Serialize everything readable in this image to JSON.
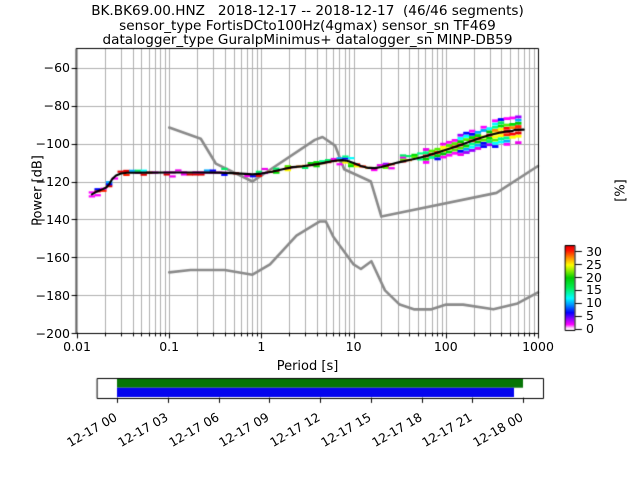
{
  "title": {
    "line1": "BK.BK69.00.HNZ   2018-12-17 -- 2018-12-17  (46/46 segments)",
    "line2": "sensor_type FortisDCto100Hz(4gmax) sensor_sn TF469",
    "line3": "datalogger_type GuralpMinimus+ datalogger_sn MINP-DB59"
  },
  "axes": {
    "xlabel": "Period [s]",
    "ylabel": "Power [dB]",
    "x_tick_labels": [
      "0.01",
      "0.1",
      "1",
      "10",
      "100",
      "1000"
    ],
    "x_tick_values": [
      0.01,
      0.1,
      1,
      10,
      100,
      1000
    ],
    "y_tick_labels": [
      "−60",
      "−80",
      "−100",
      "−120",
      "−140",
      "−160",
      "−180",
      "−200"
    ],
    "y_tick_values": [
      -60,
      -80,
      -100,
      -120,
      -140,
      -160,
      -180,
      -200
    ],
    "grid_color": "#b0b0b0"
  },
  "colorbar": {
    "label": "[%]",
    "tick_labels": [
      "30",
      "25",
      "20",
      "15",
      "10",
      "5",
      "0"
    ],
    "tick_values": [
      30,
      25,
      20,
      15,
      10,
      5,
      0
    ],
    "vmax": 32.4,
    "stops": [
      [
        0.0,
        "#ffffff"
      ],
      [
        0.03,
        "#ffd5ff"
      ],
      [
        0.07,
        "#ff00ff"
      ],
      [
        0.14,
        "#8800ff"
      ],
      [
        0.21,
        "#0000ff"
      ],
      [
        0.3,
        "#0090ff"
      ],
      [
        0.38,
        "#00ffff"
      ],
      [
        0.5,
        "#00ee55"
      ],
      [
        0.62,
        "#00cc00"
      ],
      [
        0.7,
        "#88ee00"
      ],
      [
        0.77,
        "#ffff00"
      ],
      [
        0.86,
        "#ff8800"
      ],
      [
        0.94,
        "#ff1100"
      ],
      [
        0.985,
        "#ee0000"
      ],
      [
        1.0,
        "#7d0000"
      ]
    ]
  },
  "timeline": {
    "tick_labels": [
      "12-17 00",
      "12-17 03",
      "12-17 06",
      "12-17 09",
      "12-17 12",
      "12-17 15",
      "12-17 18",
      "12-17 21",
      "12-18 00"
    ],
    "green_color": "#067506",
    "blue_color": "#0404ee"
  },
  "chart_data": {
    "type": "line",
    "title": "BK.BK69.00.HNZ 2018-12-17 -- 2018-12-17 (46/46 segments)",
    "xlabel": "Period [s]",
    "ylabel": "Power [dB]",
    "x_scale": "log",
    "xlim": [
      0.01,
      1000
    ],
    "ylim": [
      -200,
      -50
    ],
    "grid": true,
    "colorbar": {
      "label": "[%]",
      "range": [
        0,
        30
      ],
      "tick_step": 5
    },
    "series": [
      {
        "name": "ppsd-mode-line",
        "color": "#000000",
        "points": [
          [
            0.0145,
            -126.8
          ],
          [
            0.016,
            -125.6
          ],
          [
            0.0175,
            -124.7
          ],
          [
            0.019,
            -124.0
          ],
          [
            0.021,
            -123.0
          ],
          [
            0.0225,
            -121.2
          ],
          [
            0.024,
            -118.8
          ],
          [
            0.0265,
            -116.8
          ],
          [
            0.03,
            -115.8
          ],
          [
            0.035,
            -115.4
          ],
          [
            0.06,
            -115.3
          ],
          [
            0.1,
            -115.2
          ],
          [
            0.2,
            -115.2
          ],
          [
            0.35,
            -115.3
          ],
          [
            0.55,
            -115.7
          ],
          [
            0.8,
            -116.2
          ],
          [
            1.0,
            -115.8
          ],
          [
            1.3,
            -114.8
          ],
          [
            1.7,
            -113.5
          ],
          [
            2.2,
            -112.4
          ],
          [
            2.8,
            -111.9
          ],
          [
            3.5,
            -111.3
          ],
          [
            4.5,
            -110.4
          ],
          [
            5.5,
            -109.6
          ],
          [
            6.5,
            -108.9
          ],
          [
            7.5,
            -108.7
          ],
          [
            8.5,
            -109.0
          ],
          [
            10,
            -110.2
          ],
          [
            12,
            -111.8
          ],
          [
            14.5,
            -112.8
          ],
          [
            17,
            -112.9
          ],
          [
            20,
            -112.3
          ],
          [
            24,
            -111.3
          ],
          [
            30,
            -110.0
          ],
          [
            38,
            -108.9
          ],
          [
            48,
            -107.8
          ],
          [
            60,
            -106.6
          ],
          [
            75,
            -105.2
          ],
          [
            95,
            -103.6
          ],
          [
            120,
            -102.0
          ],
          [
            150,
            -100.4
          ],
          [
            190,
            -98.6
          ],
          [
            240,
            -96.9
          ],
          [
            300,
            -95.4
          ],
          [
            380,
            -94.2
          ],
          [
            450,
            -93.6
          ],
          [
            520,
            -93.4
          ],
          [
            560,
            -92.7
          ],
          [
            700,
            -92.6
          ]
        ]
      },
      {
        "name": "noise-model-NHNM",
        "color": "#8a8a8a",
        "points": [
          [
            0.1,
            -91.5
          ],
          [
            0.22,
            -97.4
          ],
          [
            0.32,
            -110.5
          ],
          [
            0.8,
            -120.0
          ],
          [
            3.8,
            -98.0
          ],
          [
            4.6,
            -96.5
          ],
          [
            6.3,
            -101.0
          ],
          [
            7.9,
            -113.5
          ],
          [
            15.4,
            -120.0
          ],
          [
            20.0,
            -138.5
          ],
          [
            354.8,
            -126.0
          ],
          [
            1000,
            -111.8
          ]
        ]
      },
      {
        "name": "noise-model-NLNM",
        "color": "#8a8a8a",
        "points": [
          [
            0.1,
            -168.0
          ],
          [
            0.17,
            -166.7
          ],
          [
            0.4,
            -166.7
          ],
          [
            0.8,
            -169.2
          ],
          [
            1.24,
            -163.7
          ],
          [
            2.4,
            -148.6
          ],
          [
            4.3,
            -141.1
          ],
          [
            5.0,
            -141.1
          ],
          [
            6.0,
            -149.0
          ],
          [
            10.0,
            -163.8
          ],
          [
            12.0,
            -166.2
          ],
          [
            15.6,
            -162.1
          ],
          [
            21.9,
            -177.5
          ],
          [
            31.6,
            -185.0
          ],
          [
            45.0,
            -187.5
          ],
          [
            70.0,
            -187.5
          ],
          [
            101.0,
            -185.0
          ],
          [
            154.0,
            -185.0
          ],
          [
            328.0,
            -187.5
          ],
          [
            600.0,
            -184.4
          ],
          [
            1000,
            -178.5
          ]
        ]
      }
    ],
    "histogram_spread_db": [
      [
        0.0145,
        1.3
      ],
      [
        0.03,
        1.2
      ],
      [
        1,
        1.3
      ],
      [
        5,
        1.8
      ],
      [
        20,
        2.0
      ],
      [
        60,
        2.6
      ],
      [
        120,
        3.2
      ],
      [
        250,
        4.6
      ],
      [
        450,
        5.6
      ],
      [
        700,
        6.4
      ]
    ],
    "coverage_timeline": {
      "start": "12-17 00",
      "end": "12-18 00",
      "tick_step_hours": 3,
      "green_span_fraction": [
        0.0,
        1.0
      ],
      "blue_span_fraction": [
        0.0,
        0.978
      ]
    }
  }
}
